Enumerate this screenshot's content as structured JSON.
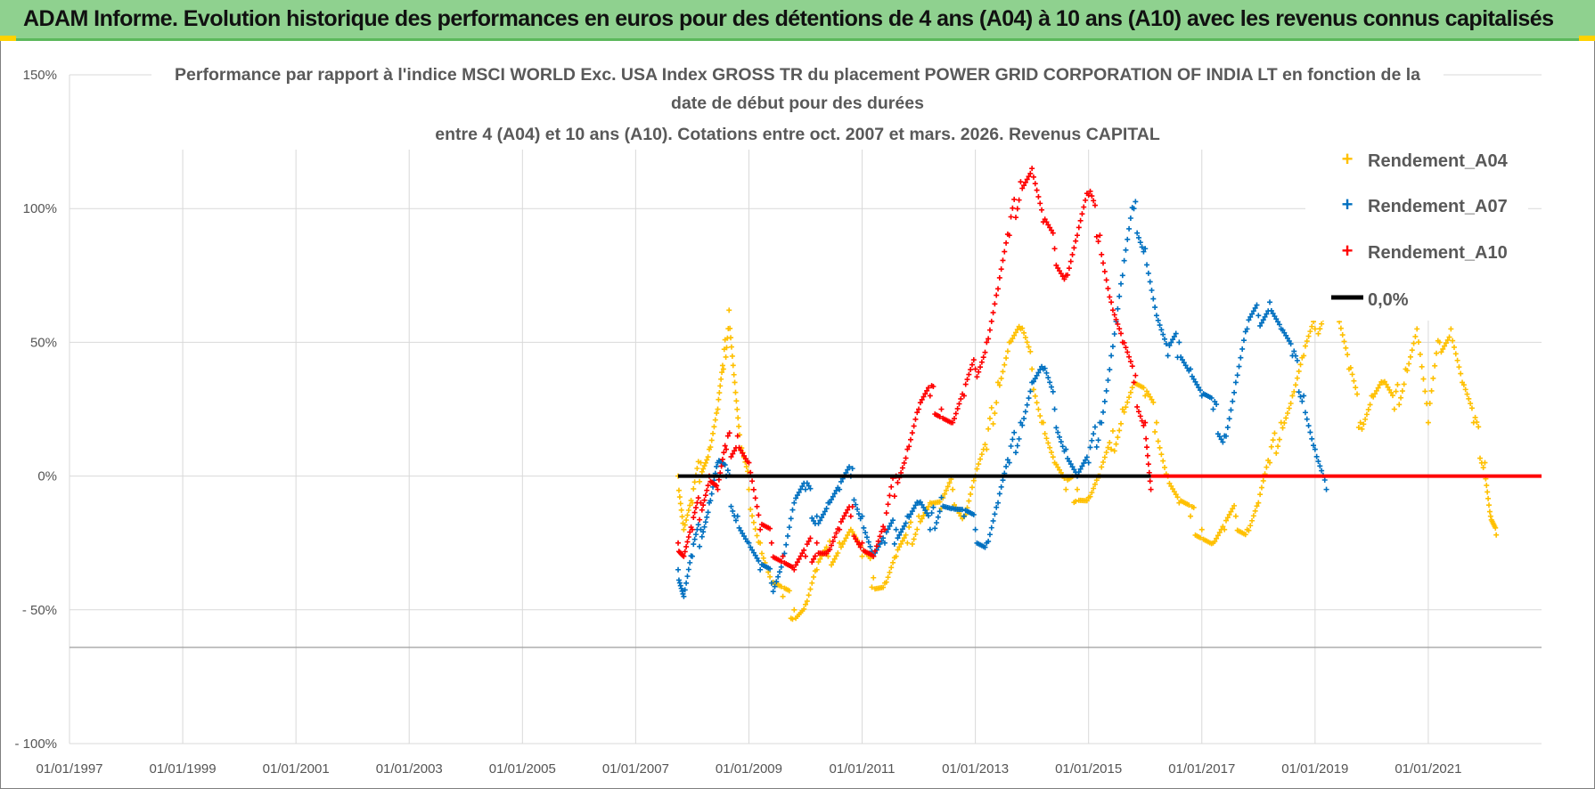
{
  "banner": {
    "title": "ADAM Informe. Evolution historique des performances en euros pour des détentions de 4 ans (A04) à 10 ans (A10) avec les revenus connus capitalisés"
  },
  "colors": {
    "banner_bg": "#8fd18f",
    "accent": "#ffd200",
    "A04": "#ffc000",
    "A07": "#0070c0",
    "A10": "#ff0000",
    "zero": "#000000",
    "grid": "#d9d9d9"
  },
  "chart_data": {
    "type": "scatter",
    "title_lines": [
      "Performance par rapport à l'indice MSCI WORLD Exc. USA Index GROSS TR  du placement POWER GRID CORPORATION OF INDIA LT en fonction de la",
      "date de début pour des durées",
      "entre 4 (A04) et 10 ans (A10). Cotations entre oct. 2007 et mars. 2026. Revenus CAPITAL"
    ],
    "xlabel": "",
    "ylabel": "",
    "x_range": [
      1997.0,
      2023.0
    ],
    "ylim": [
      -100,
      150
    ],
    "y_ticks": [
      150,
      100,
      50,
      0,
      -50,
      -100
    ],
    "y_tick_labels": [
      "150%",
      "100%",
      "50%",
      "0%",
      "- 50%",
      "- 100%"
    ],
    "x_ticks": [
      1997,
      1999,
      2001,
      2003,
      2005,
      2007,
      2009,
      2011,
      2013,
      2015,
      2017,
      2019,
      2021
    ],
    "x_tick_labels": [
      "01/01/1997",
      "01/01/1999",
      "01/01/2001",
      "01/01/2003",
      "01/01/2005",
      "01/01/2007",
      "01/01/2009",
      "01/01/2011",
      "01/01/2013",
      "01/01/2015",
      "01/01/2017",
      "01/01/2019",
      "01/01/2021"
    ],
    "legend": [
      "Rendement_A04",
      "Rendement_A07",
      "Rendement_A10",
      "0,0%"
    ],
    "legend_position": "top-right",
    "series": [
      {
        "name": "Rendement_A04",
        "color": "#ffc000",
        "x": [
          2007.75,
          2007.85,
          2008.0,
          2008.15,
          2008.3,
          2008.45,
          2008.55,
          2008.65,
          2008.75,
          2008.85,
          2009.0,
          2009.2,
          2009.4,
          2009.6,
          2009.8,
          2010.0,
          2010.2,
          2010.4,
          2010.6,
          2010.8,
          2011.0,
          2011.2,
          2011.4,
          2011.6,
          2011.8,
          2012.0,
          2012.2,
          2012.4,
          2012.6,
          2012.8,
          2013.0,
          2013.2,
          2013.4,
          2013.6,
          2013.8,
          2014.0,
          2014.2,
          2014.4,
          2014.6,
          2014.8,
          2015.0,
          2015.2,
          2015.4,
          2015.6,
          2015.8,
          2016.0,
          2016.2,
          2016.4,
          2016.6,
          2016.8,
          2017.0,
          2017.2,
          2017.4,
          2017.6,
          2017.8,
          2018.0,
          2018.2,
          2018.4,
          2018.6,
          2018.8,
          2019.0,
          2019.2,
          2019.4,
          2019.6,
          2019.8,
          2020.0,
          2020.2,
          2020.4,
          2020.6,
          2020.8,
          2021.0,
          2021.2,
          2021.4,
          2021.6,
          2021.8,
          2022.0,
          2022.1,
          2022.2
        ],
        "y": [
          0,
          -20,
          -10,
          5,
          10,
          25,
          40,
          62,
          35,
          10,
          -5,
          -25,
          -40,
          -45,
          -50,
          -48,
          -35,
          -30,
          -25,
          -20,
          -30,
          -38,
          -40,
          -30,
          -25,
          -15,
          -10,
          -12,
          -5,
          -15,
          0,
          10,
          35,
          50,
          55,
          40,
          20,
          5,
          -5,
          -5,
          -8,
          0,
          10,
          25,
          35,
          30,
          20,
          0,
          -10,
          -15,
          -20,
          -25,
          -20,
          -15,
          -20,
          -10,
          5,
          20,
          30,
          45,
          55,
          65,
          60,
          40,
          20,
          30,
          35,
          25,
          40,
          55,
          20,
          50,
          55,
          35,
          20,
          5,
          -15,
          -22
        ]
      },
      {
        "name": "Rendement_A07",
        "color": "#0070c0",
        "x": [
          2007.75,
          2007.85,
          2008.0,
          2008.15,
          2008.3,
          2008.45,
          2008.6,
          2008.8,
          2009.0,
          2009.2,
          2009.4,
          2009.6,
          2009.8,
          2010.0,
          2010.2,
          2010.4,
          2010.6,
          2010.8,
          2011.0,
          2011.2,
          2011.4,
          2011.6,
          2011.8,
          2012.0,
          2012.2,
          2012.4,
          2012.6,
          2012.8,
          2013.0,
          2013.2,
          2013.4,
          2013.6,
          2013.8,
          2014.0,
          2014.2,
          2014.4,
          2014.6,
          2014.8,
          2015.0,
          2015.2,
          2015.4,
          2015.6,
          2015.8,
          2016.0,
          2016.2,
          2016.4,
          2016.6,
          2016.8,
          2017.0,
          2017.2,
          2017.4,
          2017.6,
          2017.8,
          2018.0,
          2018.2,
          2018.4,
          2018.6,
          2018.8,
          2019.0,
          2019.2
        ],
        "y": [
          -35,
          -45,
          -30,
          -20,
          -10,
          5,
          0,
          -15,
          -25,
          -35,
          -40,
          -30,
          -10,
          -5,
          -15,
          -10,
          -5,
          0,
          -15,
          -30,
          -25,
          -20,
          -15,
          -10,
          -20,
          -8,
          -12,
          -15,
          -20,
          -25,
          -10,
          5,
          20,
          35,
          40,
          25,
          10,
          0,
          5,
          20,
          45,
          75,
          100,
          85,
          60,
          45,
          50,
          40,
          30,
          25,
          15,
          35,
          55,
          60,
          65,
          55,
          45,
          30,
          10,
          -5
        ]
      },
      {
        "name": "Rendement_A10",
        "color": "#ff0000",
        "x": [
          2007.75,
          2007.85,
          2008.0,
          2008.15,
          2008.3,
          2008.45,
          2008.6,
          2008.8,
          2009.0,
          2009.2,
          2009.4,
          2009.6,
          2009.8,
          2010.0,
          2010.2,
          2010.4,
          2010.6,
          2010.8,
          2011.0,
          2011.2,
          2011.4,
          2011.6,
          2011.8,
          2012.0,
          2012.2,
          2012.4,
          2012.6,
          2012.8,
          2013.0,
          2013.2,
          2013.4,
          2013.6,
          2013.8,
          2014.0,
          2014.2,
          2014.4,
          2014.6,
          2014.8,
          2015.0,
          2015.2,
          2015.4,
          2015.6,
          2015.8,
          2016.0,
          2016.1
        ],
        "y": [
          -25,
          -30,
          -20,
          -10,
          0,
          -5,
          10,
          15,
          5,
          -20,
          -25,
          -30,
          -35,
          -30,
          -25,
          -28,
          -20,
          -15,
          -25,
          -30,
          -20,
          0,
          10,
          25,
          30,
          25,
          20,
          30,
          40,
          50,
          70,
          90,
          110,
          115,
          95,
          85,
          75,
          90,
          105,
          90,
          65,
          50,
          35,
          20,
          -5
        ]
      },
      {
        "name": "0,0%",
        "color": "#000000",
        "x": [
          2007.75,
          2016.1
        ],
        "y": [
          0,
          0
        ]
      },
      {
        "name": "0,0% (red segment)",
        "color": "#ff0000",
        "x": [
          2016.1,
          2023.0
        ],
        "y": [
          0,
          0
        ]
      }
    ]
  }
}
